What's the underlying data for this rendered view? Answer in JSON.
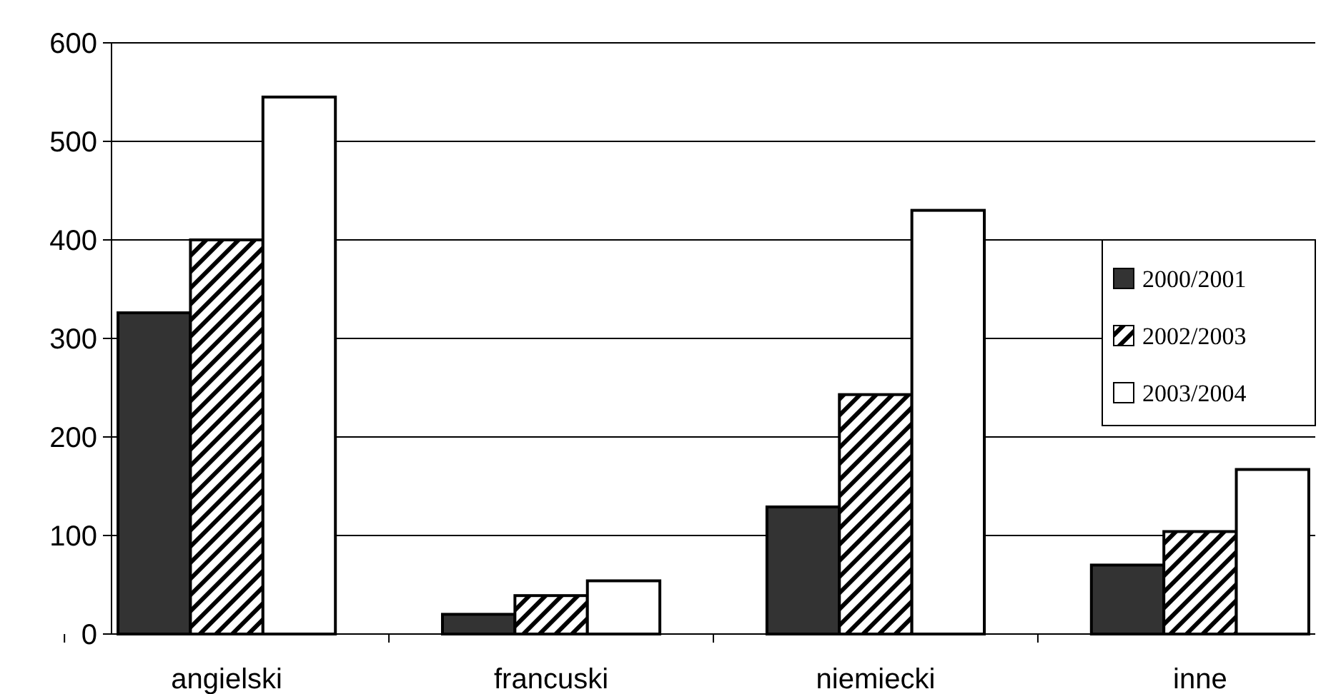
{
  "chart_data": {
    "type": "bar",
    "categories": [
      "angielski",
      "francuski",
      "niemiecki",
      "inne"
    ],
    "series": [
      {
        "name": "2000/2001",
        "color": "#333333",
        "values": [
          326,
          20,
          129,
          70
        ]
      },
      {
        "name": "2002/2003",
        "color": "#000000",
        "values": [
          400,
          39,
          243,
          104
        ]
      },
      {
        "name": "2003/2004",
        "color": "#ffffff",
        "values": [
          545,
          54,
          430,
          167
        ]
      }
    ],
    "ylim": [
      0,
      600
    ],
    "yticks": [
      0,
      100,
      200,
      300,
      400,
      500,
      600
    ],
    "grid": "y",
    "legend": "right"
  }
}
